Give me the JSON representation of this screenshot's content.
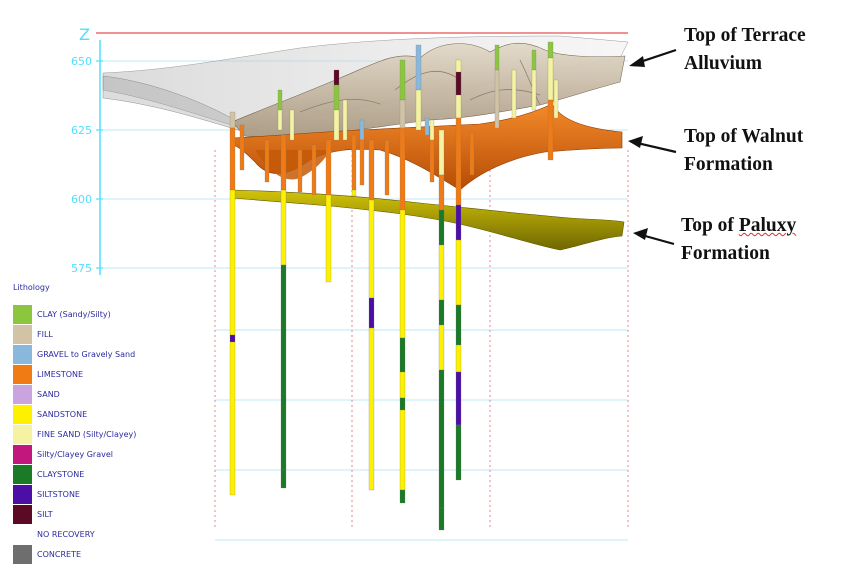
{
  "axis": {
    "label": "Z",
    "ticks": [
      {
        "label": "650",
        "value": 650
      },
      {
        "label": "625",
        "value": 625
      },
      {
        "label": "600",
        "value": 600
      },
      {
        "label": "575",
        "value": 575
      }
    ]
  },
  "legend": {
    "title": "Lithology",
    "items": [
      {
        "label": "CLAY (Sandy/Silty)",
        "color": "#8cc63f"
      },
      {
        "label": "FILL",
        "color": "#d2c3a6"
      },
      {
        "label": "GRAVEL to Gravely Sand",
        "color": "#8ab8dc"
      },
      {
        "label": "LIMESTONE",
        "color": "#f07a14"
      },
      {
        "label": "SAND",
        "color": "#caa4df"
      },
      {
        "label": "SANDSTONE",
        "color": "#fdf000"
      },
      {
        "label": "FINE SAND (Silty/Clayey)",
        "color": "#f5f3a2"
      },
      {
        "label": "Silty/Clayey Gravel",
        "color": "#c2177c"
      },
      {
        "label": "CLAYSTONE",
        "color": "#1a7a26"
      },
      {
        "label": "SILTSTONE",
        "color": "#4b0fa5"
      },
      {
        "label": "SILT",
        "color": "#5a0a24"
      },
      {
        "label": "NO RECOVERY",
        "color": "#ffffff"
      },
      {
        "label": "CONCRETE",
        "color": "#6e6e6e"
      }
    ]
  },
  "callouts": [
    {
      "line1": "Top of Terrace",
      "line2": "Alluvium"
    },
    {
      "line1": "Top of Walnut",
      "line2": "Formation"
    },
    {
      "line1": "Top of Paluxy",
      "line2": "Formation"
    }
  ],
  "colors": {
    "axis": "#4fe0ff",
    "grid": "#bfe8f4",
    "red_line": "#e85050",
    "terrace_surface": "#cfc4b2",
    "walnut_surface": "#e06a10",
    "paluxy_surface": "#a8a000",
    "ghost_surface": "#c8c8c8"
  }
}
